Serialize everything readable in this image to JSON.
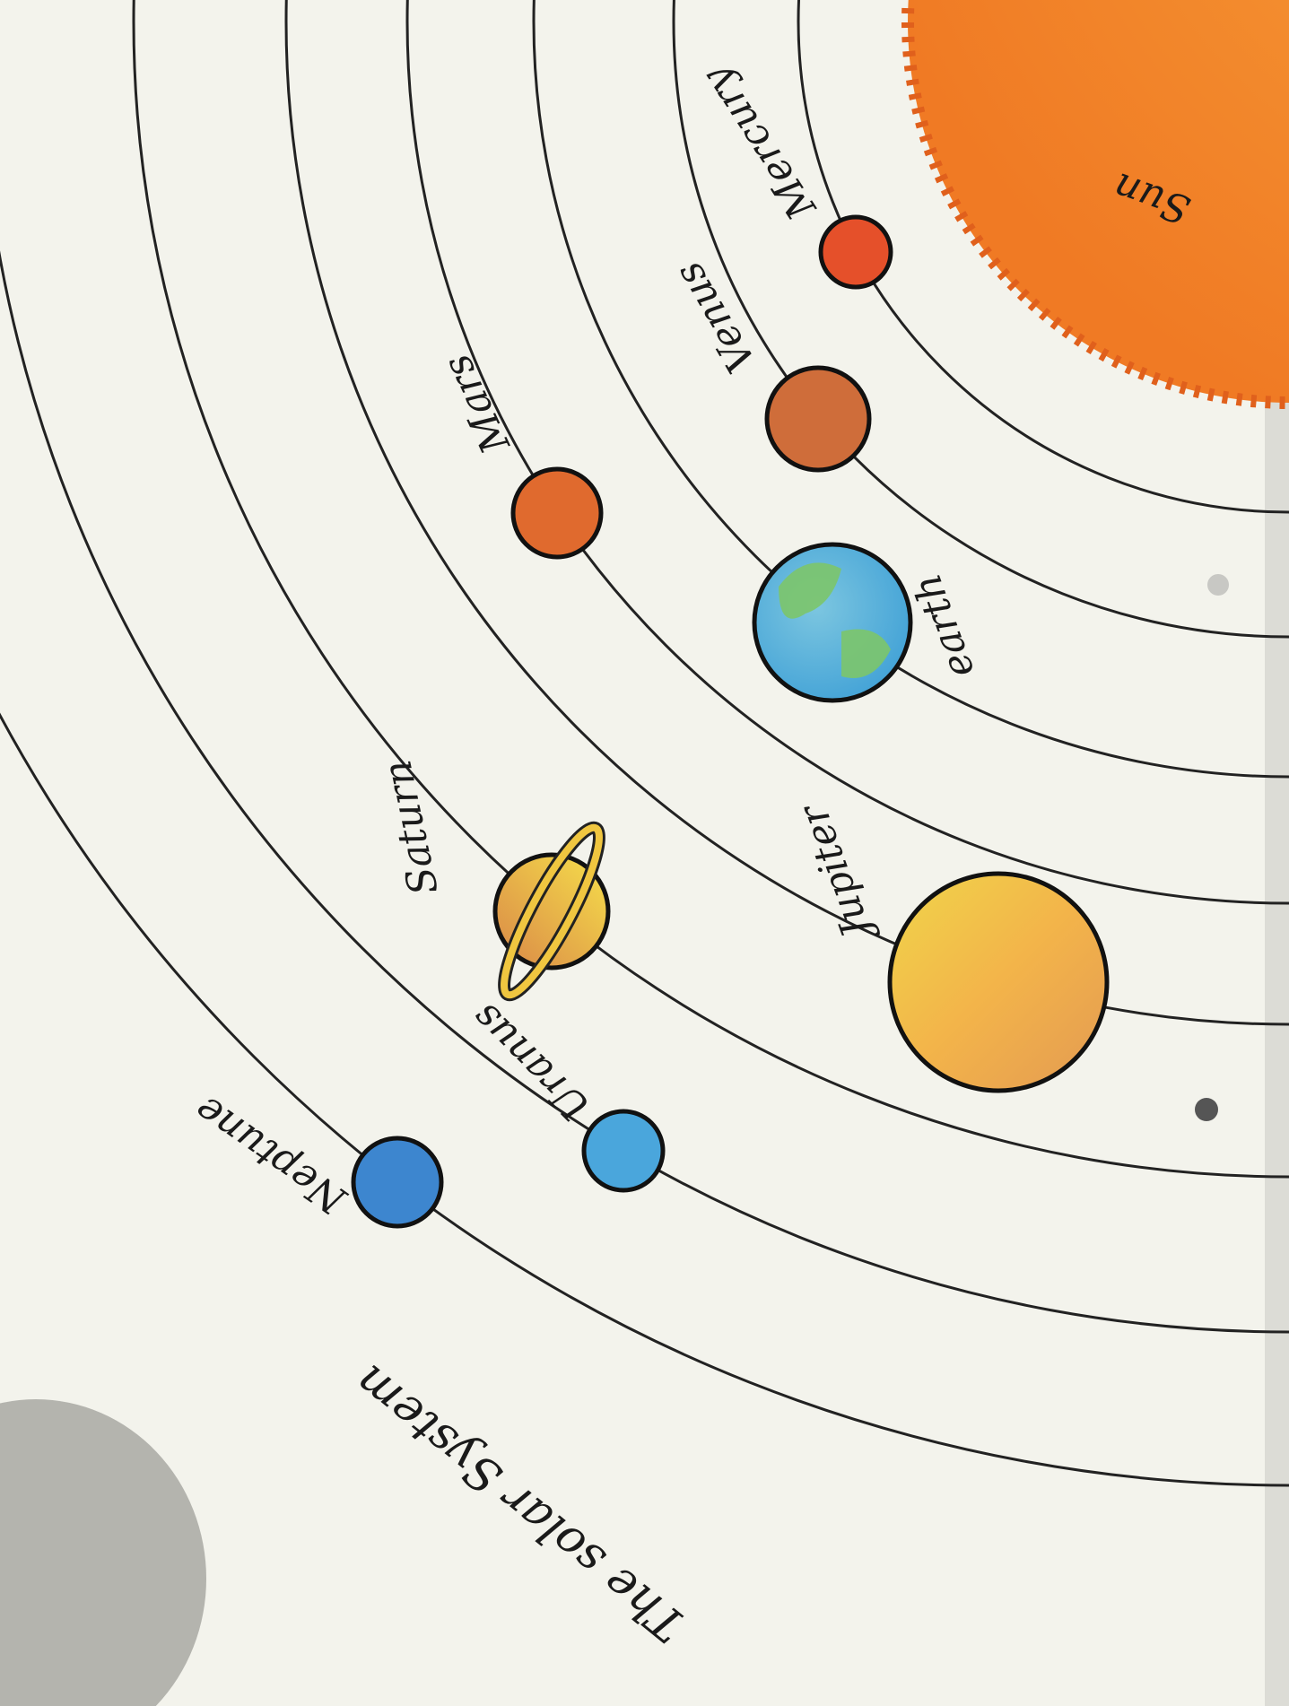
{
  "title": "The solar System",
  "sun": {
    "label": "Sun"
  },
  "planets": [
    {
      "label": "Mercury"
    },
    {
      "label": "Venus"
    },
    {
      "label": "earth"
    },
    {
      "label": "Mars"
    },
    {
      "label": "Jupiter"
    },
    {
      "label": "Saturn"
    },
    {
      "label": "Uranus"
    },
    {
      "label": "Neptune"
    }
  ]
}
